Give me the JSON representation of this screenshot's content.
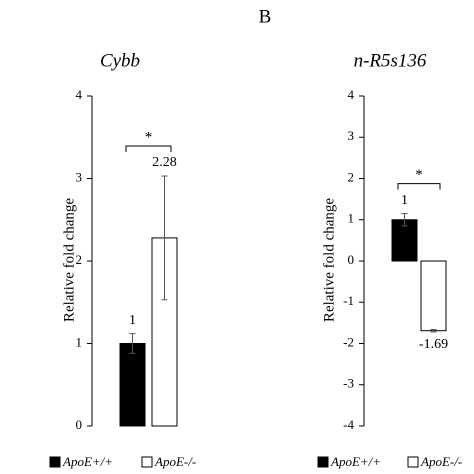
{
  "panel_label": "B",
  "chart_data": [
    {
      "type": "bar",
      "title": "Cybb",
      "ylabel": "Relative fold change",
      "ylim": [
        0,
        4
      ],
      "yticks": [
        0,
        1,
        2,
        3,
        4
      ],
      "series": [
        {
          "name": "ApoE+/+",
          "color": "#000000",
          "values": [
            1
          ],
          "errors": [
            0.12
          ]
        },
        {
          "name": "ApoE-/-",
          "color": "#ffffff",
          "values": [
            2.28
          ],
          "errors": [
            0.75
          ]
        }
      ],
      "annotation": "*"
    },
    {
      "type": "bar",
      "title": "n-R5s136",
      "ylabel": "Relative fold change",
      "ylim": [
        -4,
        4
      ],
      "yticks": [
        -4,
        -3,
        -2,
        -1,
        0,
        1,
        2,
        3,
        4
      ],
      "series": [
        {
          "name": "ApoE+/+",
          "color": "#000000",
          "values": [
            1
          ],
          "errors": [
            0.15
          ]
        },
        {
          "name": "ApoE-/-",
          "color": "#ffffff",
          "values": [
            -1.69
          ],
          "errors": [
            0.03
          ]
        }
      ],
      "annotation": "*"
    }
  ]
}
